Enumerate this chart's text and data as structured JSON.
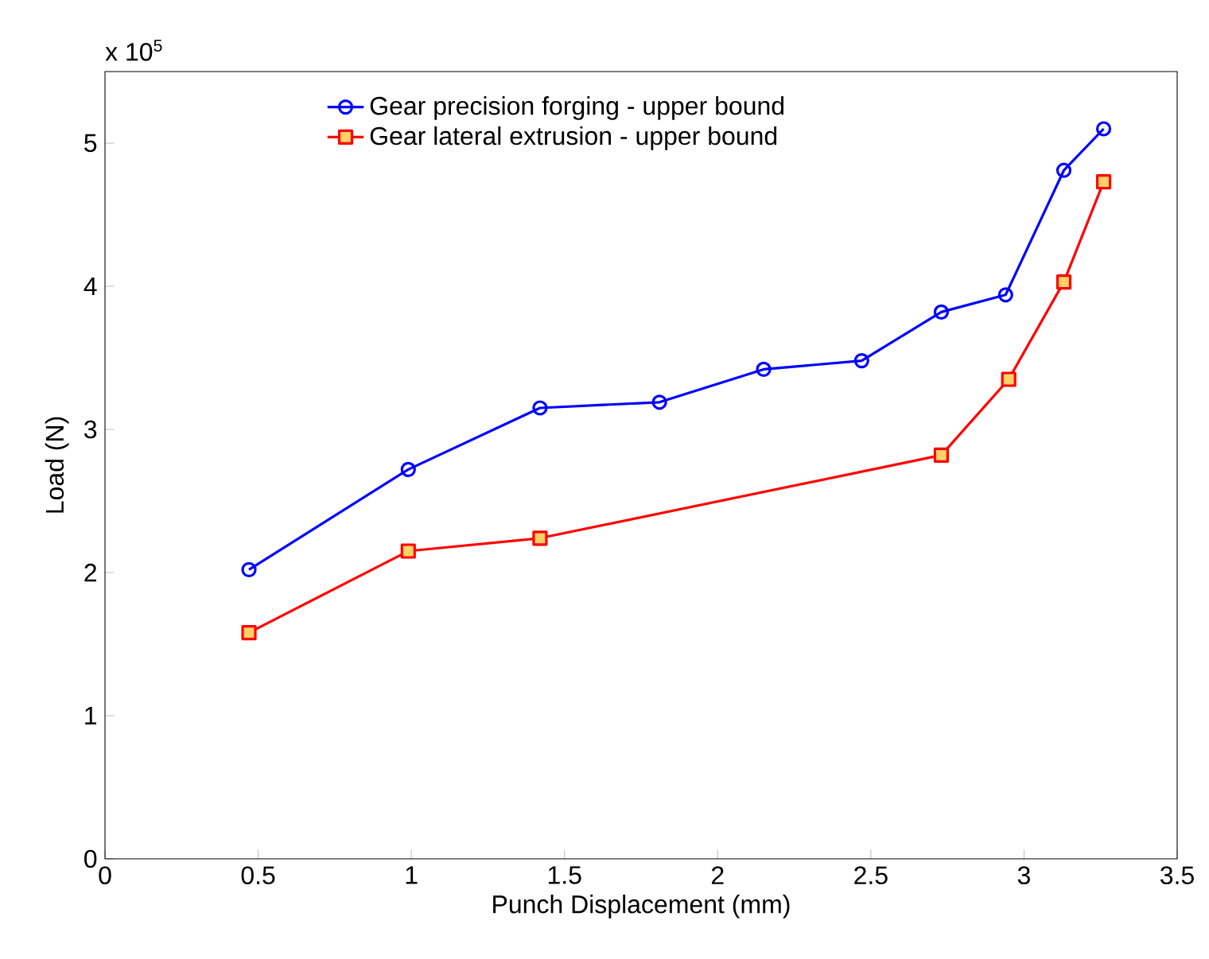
{
  "chart_data": {
    "type": "line",
    "xlabel": "Punch Displacement (mm)",
    "ylabel": "Load (N)",
    "annotations": [
      "x 10$^{5}$"
    ],
    "xlim": [
      0,
      3.5
    ],
    "ylim": [
      0,
      5.5
    ],
    "xticks": [
      0,
      0.5,
      1,
      1.5,
      2,
      2.5,
      3,
      3.5
    ],
    "yticks": [
      0,
      1,
      2,
      3,
      4,
      5
    ],
    "legend": "top",
    "line_style": "solid",
    "series": [
      {
        "name": "Gear precision forging - upper bound",
        "color": "#0000ff",
        "marker": "circle",
        "x": [
          0.47,
          0.99,
          1.42,
          1.81,
          2.15,
          2.47,
          2.73,
          2.94,
          3.13,
          3.26
        ],
        "values": [
          2.02,
          2.72,
          3.15,
          3.19,
          3.42,
          3.48,
          3.82,
          3.94,
          4.81,
          5.1
        ]
      },
      {
        "name": "Gear lateral extrusion - upper bound",
        "color": "#ff0000",
        "marker": "square",
        "x": [
          0.47,
          0.99,
          1.42,
          2.73,
          2.95,
          3.13,
          3.26
        ],
        "values": [
          1.58,
          2.15,
          2.24,
          2.82,
          3.35,
          4.03,
          4.73
        ]
      }
    ]
  }
}
